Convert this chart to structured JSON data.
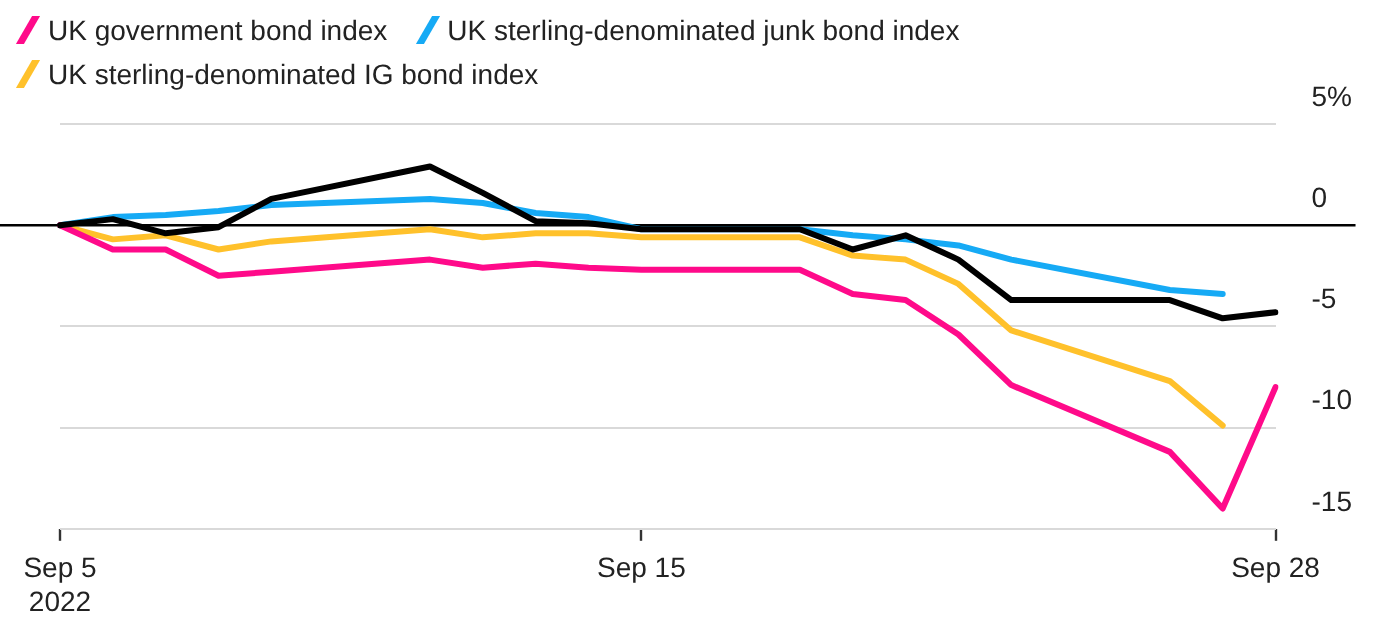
{
  "chart_data": {
    "type": "line",
    "categories": [
      "Sep 5\n2022",
      null,
      null,
      null,
      null,
      null,
      null,
      null,
      null,
      null,
      null,
      "Sep 15",
      null,
      null,
      null,
      null,
      null,
      null,
      null,
      null,
      null,
      null,
      null,
      "Sep 28"
    ],
    "series": [
      {
        "color": "#000000",
        "values": [
          0,
          0.3,
          -0.4,
          -0.1,
          1.3,
          null,
          null,
          2.9,
          1.6,
          0.2,
          0.1,
          -0.2,
          null,
          null,
          -0.2,
          -1.2,
          -0.5,
          -1.7,
          -3.7,
          null,
          null,
          -3.7,
          -4.6,
          -4.3
        ]
      },
      {
        "name": "UK government bond index",
        "color": "#ff0a8a",
        "values": [
          0,
          -1.2,
          -1.2,
          -2.5,
          -2.3,
          null,
          null,
          -1.7,
          -2.1,
          -1.9,
          -2.1,
          -2.2,
          null,
          null,
          -2.2,
          -3.4,
          -3.7,
          -5.4,
          -7.9,
          null,
          null,
          -11.2,
          -14.0,
          -8.0
        ]
      },
      {
        "name": "UK sterling-denominated junk bond index",
        "color": "#16aaf5",
        "values": [
          0,
          0.4,
          0.5,
          0.7,
          1.0,
          null,
          null,
          1.3,
          1.1,
          0.6,
          0.4,
          -0.2,
          null,
          null,
          -0.2,
          -0.5,
          -0.7,
          -1.0,
          -1.7,
          null,
          null,
          -3.2,
          -3.4,
          null
        ]
      },
      {
        "name": "UK sterling-denominated IG bond index",
        "color": "#ffc12b",
        "values": [
          0,
          -0.7,
          -0.5,
          -1.2,
          -0.8,
          null,
          null,
          -0.2,
          -0.6,
          -0.4,
          -0.4,
          -0.6,
          null,
          null,
          -0.6,
          -1.5,
          -1.7,
          -2.9,
          -5.2,
          null,
          null,
          -7.7,
          -9.9,
          null
        ]
      }
    ],
    "ylim": [
      -15,
      5
    ],
    "yticks": [
      {
        "value": 5,
        "label": "5%"
      },
      0,
      -5,
      -10,
      -15
    ],
    "ref_lines": [
      {
        "axis": "y",
        "value": 0,
        "color": "#000000"
      }
    ],
    "grid": "y",
    "legend": "top"
  }
}
